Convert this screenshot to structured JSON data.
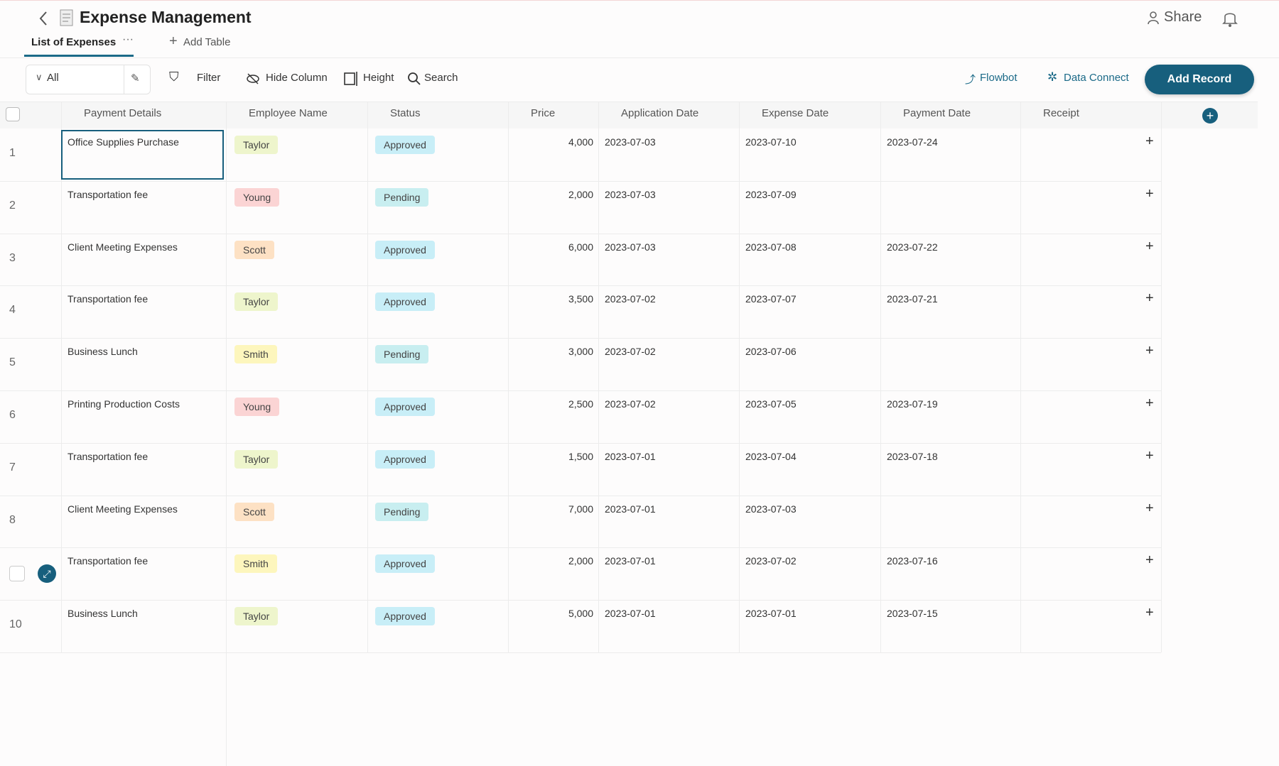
{
  "header": {
    "title": "Expense Management",
    "share": "Share"
  },
  "tabs": {
    "active": "List of Expenses",
    "add": "Add Table"
  },
  "toolbar": {
    "view": "All",
    "filter": "Filter",
    "hide_column": "Hide Column",
    "height": "Height",
    "search": "Search",
    "flowbot": "Flowbot",
    "data_connect": "Data Connect",
    "add_record": "Add Record"
  },
  "table": {
    "columns": [
      "Payment Details",
      "Employee Name",
      "Status",
      "Price",
      "Application Date",
      "Expense Date",
      "Payment Date",
      "Receipt"
    ],
    "rows": [
      {
        "num": "1",
        "details": "Office Supplies Purchase",
        "employee": {
          "text": "Taylor",
          "color": "#eef5cc"
        },
        "status": {
          "text": "Approved",
          "color": "#c8eef7"
        },
        "price": "4,000",
        "application_date": "2023-07-03",
        "expense_date": "2023-07-10",
        "payment_date": "2023-07-24"
      },
      {
        "num": "2",
        "details": "Transportation fee",
        "employee": {
          "text": "Young",
          "color": "#fbd4d4"
        },
        "status": {
          "text": "Pending",
          "color": "#c8eef0"
        },
        "price": "2,000",
        "application_date": "2023-07-03",
        "expense_date": "2023-07-09",
        "payment_date": null
      },
      {
        "num": "3",
        "details": "Client Meeting Expenses",
        "employee": {
          "text": "Scott",
          "color": "#fde1c4"
        },
        "status": {
          "text": "Approved",
          "color": "#c8eef7"
        },
        "price": "6,000",
        "application_date": "2023-07-03",
        "expense_date": "2023-07-08",
        "payment_date": "2023-07-22"
      },
      {
        "num": "4",
        "details": "Transportation fee",
        "employee": {
          "text": "Taylor",
          "color": "#eef5cc"
        },
        "status": {
          "text": "Approved",
          "color": "#c8eef7"
        },
        "price": "3,500",
        "application_date": "2023-07-02",
        "expense_date": "2023-07-07",
        "payment_date": "2023-07-21"
      },
      {
        "num": "5",
        "details": "Business Lunch",
        "employee": {
          "text": "Smith",
          "color": "#fdf6bd"
        },
        "status": {
          "text": "Pending",
          "color": "#c8eef0"
        },
        "price": "3,000",
        "application_date": "2023-07-02",
        "expense_date": "2023-07-06",
        "payment_date": null
      },
      {
        "num": "6",
        "details": "Printing Production Costs",
        "employee": {
          "text": "Young",
          "color": "#fbd4d4"
        },
        "status": {
          "text": "Approved",
          "color": "#c8eef7"
        },
        "price": "2,500",
        "application_date": "2023-07-02",
        "expense_date": "2023-07-05",
        "payment_date": "2023-07-19"
      },
      {
        "num": "7",
        "details": "Transportation fee",
        "employee": {
          "text": "Taylor",
          "color": "#eef5cc"
        },
        "status": {
          "text": "Approved",
          "color": "#c8eef7"
        },
        "price": "1,500",
        "application_date": "2023-07-01",
        "expense_date": "2023-07-04",
        "payment_date": "2023-07-18"
      },
      {
        "num": "8",
        "details": "Client Meeting Expenses",
        "employee": {
          "text": "Scott",
          "color": "#fde1c4"
        },
        "status": {
          "text": "Pending",
          "color": "#c8eef0"
        },
        "price": "7,000",
        "application_date": "2023-07-01",
        "expense_date": "2023-07-03",
        "payment_date": null
      },
      {
        "num": null,
        "details": "Transportation fee",
        "employee": {
          "text": "Smith",
          "color": "#fdf6bd"
        },
        "status": {
          "text": "Approved",
          "color": "#c8eef7"
        },
        "price": "2,000",
        "application_date": "2023-07-01",
        "expense_date": "2023-07-02",
        "payment_date": "2023-07-16"
      },
      {
        "num": "10",
        "details": "Business Lunch",
        "employee": {
          "text": "Taylor",
          "color": "#eef5cc"
        },
        "status": {
          "text": "Approved",
          "color": "#c8eef7"
        },
        "price": "5,000",
        "application_date": "2023-07-01",
        "expense_date": "2023-07-01",
        "payment_date": "2023-07-15"
      }
    ]
  }
}
